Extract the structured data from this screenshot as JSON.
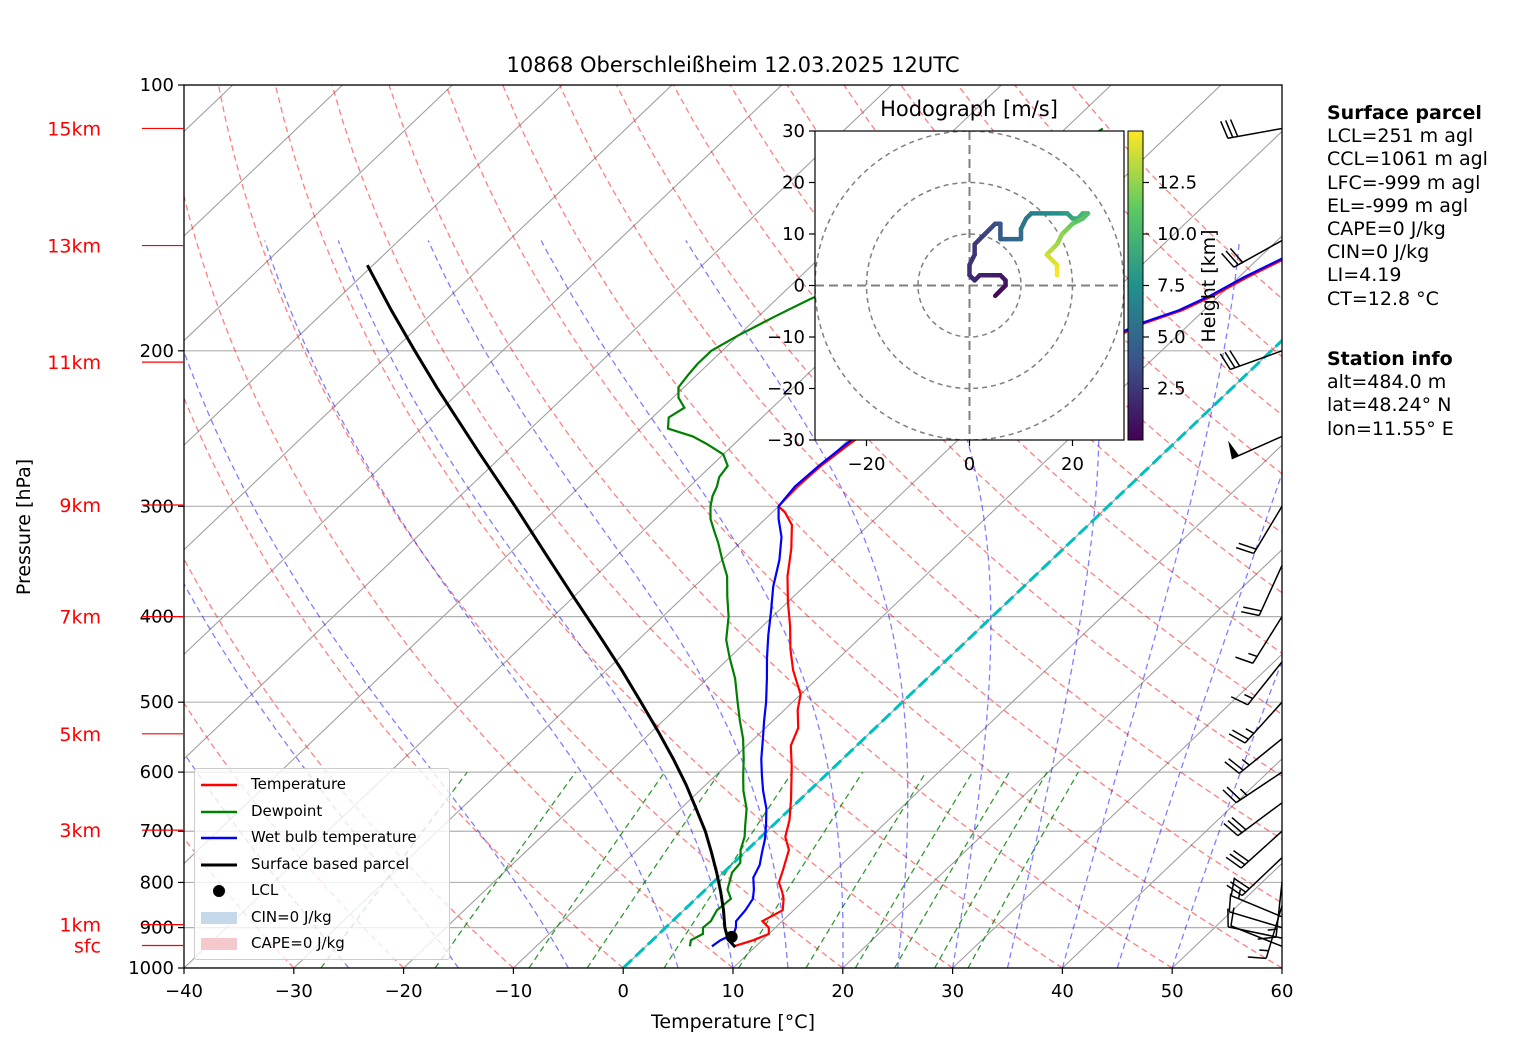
{
  "chart_data": {
    "type": "skew-t log-p",
    "title": "10868 Oberschleißheim 12.03.2025 12UTC",
    "xlabel": "Temperature [°C]",
    "ylabel": "Pressure [hPa]",
    "xlim": [
      -40,
      60
    ],
    "ylim": [
      1000,
      100
    ],
    "x_ticks": [
      -40,
      -30,
      -20,
      -10,
      0,
      10,
      20,
      30,
      40,
      50,
      60
    ],
    "x_tick_labels": [
      "−40",
      "−30",
      "−20",
      "−10",
      "0",
      "10",
      "20",
      "30",
      "40",
      "50",
      "60"
    ],
    "p_ticks": [
      100,
      200,
      300,
      400,
      500,
      600,
      700,
      800,
      900,
      1000
    ],
    "height_labels": [
      {
        "label": "15km",
        "p": 112
      },
      {
        "label": "13km",
        "p": 152
      },
      {
        "label": "11km",
        "p": 206
      },
      {
        "label": "9km",
        "p": 299
      },
      {
        "label": "7km",
        "p": 400
      },
      {
        "label": "5km",
        "p": 543
      },
      {
        "label": "3km",
        "p": 698
      },
      {
        "label": "1km",
        "p": 893
      },
      {
        "label": "sfc",
        "p": 943
      }
    ],
    "series": [
      {
        "name": "Temperature",
        "color": "#ff0000",
        "points": [
          [
            8.0,
            945
          ],
          [
            9.2,
            930
          ],
          [
            10.0,
            915
          ],
          [
            9.4,
            900
          ],
          [
            8.2,
            885
          ],
          [
            9.0,
            860
          ],
          [
            8.0,
            835
          ],
          [
            7.2,
            820
          ],
          [
            6.0,
            800
          ],
          [
            5.2,
            775
          ],
          [
            3.8,
            735
          ],
          [
            2.2,
            710
          ],
          [
            1.0,
            680
          ],
          [
            -0.8,
            645
          ],
          [
            -2.8,
            610
          ],
          [
            -4.0,
            590
          ],
          [
            -6.0,
            560
          ],
          [
            -7.0,
            535
          ],
          [
            -8.8,
            510
          ],
          [
            -10.0,
            490
          ],
          [
            -13.0,
            460
          ],
          [
            -15.3,
            435
          ],
          [
            -17.5,
            410
          ],
          [
            -20.0,
            385
          ],
          [
            -22.5,
            360
          ],
          [
            -24.8,
            335
          ],
          [
            -27.0,
            315
          ],
          [
            -28.8,
            305
          ],
          [
            -30.0,
            300
          ],
          [
            -30.2,
            285
          ],
          [
            -30.0,
            270
          ],
          [
            -29.5,
            255
          ],
          [
            -28.8,
            240
          ],
          [
            -27.0,
            230
          ],
          [
            -25.0,
            225
          ],
          [
            -23.0,
            222
          ],
          [
            -20.5,
            215
          ],
          [
            -19.0,
            207
          ],
          [
            -16.0,
            197
          ],
          [
            -14.5,
            187
          ],
          [
            -12.0,
            180
          ],
          [
            -10.5,
            173
          ],
          [
            -9.2,
            165
          ],
          [
            -7.5,
            157
          ],
          [
            -5.6,
            147
          ],
          [
            -4.2,
            140
          ],
          [
            -3.2,
            135
          ],
          [
            -2.2,
            127
          ],
          [
            -1.5,
            120
          ],
          [
            -0.7,
            113
          ],
          [
            0.2,
            112
          ]
        ]
      },
      {
        "name": "Dewpoint",
        "color": "#008000",
        "points": [
          [
            4.0,
            945
          ],
          [
            3.5,
            930
          ],
          [
            4.0,
            915
          ],
          [
            3.4,
            900
          ],
          [
            3.5,
            885
          ],
          [
            3.0,
            860
          ],
          [
            3.2,
            835
          ],
          [
            2.0,
            815
          ],
          [
            0.8,
            780
          ],
          [
            0.6,
            760
          ],
          [
            -0.6,
            735
          ],
          [
            -1.5,
            710
          ],
          [
            -2.5,
            690
          ],
          [
            -4.0,
            660
          ],
          [
            -6.0,
            630
          ],
          [
            -7.5,
            605
          ],
          [
            -9.0,
            580
          ],
          [
            -11.0,
            550
          ],
          [
            -13.0,
            525
          ],
          [
            -15.0,
            500
          ],
          [
            -17.5,
            470
          ],
          [
            -20.0,
            445
          ],
          [
            -22.0,
            425
          ],
          [
            -24.0,
            400
          ],
          [
            -26.0,
            380
          ],
          [
            -28.0,
            360
          ],
          [
            -30.0,
            345
          ],
          [
            -32.0,
            330
          ],
          [
            -33.5,
            320
          ],
          [
            -35.0,
            310
          ],
          [
            -36.2,
            300
          ],
          [
            -37.0,
            292
          ],
          [
            -37.5,
            285
          ],
          [
            -38.2,
            278
          ],
          [
            -38.5,
            270
          ],
          [
            -40.0,
            262
          ],
          [
            -42.5,
            255
          ],
          [
            -44.5,
            250
          ],
          [
            -47.5,
            245
          ],
          [
            -48.5,
            238
          ],
          [
            -48.0,
            232
          ],
          [
            -49.5,
            226
          ],
          [
            -50.5,
            220
          ],
          [
            -50.8,
            213
          ],
          [
            -51.0,
            207
          ],
          [
            -51.0,
            200
          ],
          [
            -50.0,
            192
          ],
          [
            -48.5,
            183
          ],
          [
            -47.0,
            175
          ],
          [
            -44.5,
            165
          ],
          [
            -42.5,
            157
          ],
          [
            -41.0,
            150
          ],
          [
            -40.5,
            140
          ],
          [
            -39.5,
            132
          ],
          [
            -38.0,
            125
          ],
          [
            -37.5,
            118
          ],
          [
            -36.6,
            112
          ]
        ]
      },
      {
        "name": "Wet bulb temperature",
        "color": "#0000ff",
        "points": [
          [
            6.0,
            945
          ],
          [
            6.2,
            930
          ],
          [
            6.8,
            915
          ],
          [
            6.4,
            900
          ],
          [
            5.8,
            885
          ],
          [
            5.6,
            860
          ],
          [
            5.2,
            835
          ],
          [
            4.4,
            815
          ],
          [
            3.2,
            790
          ],
          [
            2.6,
            765
          ],
          [
            1.6,
            740
          ],
          [
            0.6,
            715
          ],
          [
            -0.6,
            690
          ],
          [
            -2.2,
            660
          ],
          [
            -4.2,
            630
          ],
          [
            -5.8,
            605
          ],
          [
            -7.4,
            580
          ],
          [
            -9.2,
            550
          ],
          [
            -10.8,
            525
          ],
          [
            -12.4,
            500
          ],
          [
            -14.6,
            470
          ],
          [
            -16.6,
            445
          ],
          [
            -18.6,
            420
          ],
          [
            -20.6,
            395
          ],
          [
            -22.8,
            370
          ],
          [
            -24.8,
            345
          ],
          [
            -26.8,
            325
          ],
          [
            -28.8,
            310
          ],
          [
            -30.0,
            300
          ],
          [
            -30.4,
            285
          ],
          [
            -30.2,
            270
          ],
          [
            -29.8,
            255
          ],
          [
            -29.2,
            240
          ],
          [
            -27.5,
            230
          ],
          [
            -25.5,
            225
          ],
          [
            -23.3,
            222
          ],
          [
            -20.8,
            215
          ],
          [
            -19.3,
            207
          ],
          [
            -16.3,
            197
          ],
          [
            -14.8,
            187
          ],
          [
            -12.3,
            180
          ],
          [
            -10.8,
            173
          ],
          [
            -9.5,
            165
          ],
          [
            -7.8,
            157
          ],
          [
            -5.9,
            147
          ],
          [
            -4.5,
            140
          ],
          [
            -3.5,
            135
          ],
          [
            -2.5,
            127
          ],
          [
            -1.8,
            120
          ],
          [
            -1.0,
            113
          ],
          [
            -0.1,
            112
          ]
        ]
      },
      {
        "name": "Surface based parcel",
        "color": "#000000",
        "points": [
          [
            8.2,
            947
          ],
          [
            6.8,
            928
          ],
          [
            5.4,
            900
          ],
          [
            3.6,
            860
          ],
          [
            1.6,
            820
          ],
          [
            -0.6,
            780
          ],
          [
            -3.0,
            740
          ],
          [
            -5.6,
            700
          ],
          [
            -8.6,
            660
          ],
          [
            -11.8,
            620
          ],
          [
            -15.4,
            580
          ],
          [
            -19.4,
            540
          ],
          [
            -23.8,
            500
          ],
          [
            -28.6,
            460
          ],
          [
            -34.0,
            420
          ],
          [
            -40.0,
            380
          ],
          [
            -46.6,
            340
          ],
          [
            -54.0,
            300
          ],
          [
            -62.6,
            260
          ],
          [
            -72.5,
            220
          ],
          [
            -78.0,
            200
          ],
          [
            -84.0,
            180
          ],
          [
            -90.5,
            160
          ]
        ]
      }
    ],
    "lcl": {
      "name": "LCL",
      "t": 6.9,
      "p": 922
    },
    "legend": [
      {
        "label": "Temperature",
        "kind": "line",
        "color": "#ff0000"
      },
      {
        "label": "Dewpoint",
        "kind": "line",
        "color": "#008000"
      },
      {
        "label": "Wet bulb temperature",
        "kind": "line",
        "color": "#0000ff"
      },
      {
        "label": "Surface based parcel",
        "kind": "line",
        "color": "#000000"
      },
      {
        "label": "LCL",
        "kind": "dot",
        "color": "#000000"
      },
      {
        "label": "CIN=0 J/kg",
        "kind": "patch",
        "color": "#c6d9ea"
      },
      {
        "label": "CAPE=0 J/kg",
        "kind": "patch",
        "color": "#f5c8cc"
      }
    ],
    "legend_position": "lower-left",
    "zero_isotherm_color": "#00bfbf",
    "wind_barbs": [
      {
        "p": 112,
        "u": -5.5,
        "v": -1.0,
        "speed_kt": 30
      },
      {
        "p": 150,
        "u": -4.5,
        "v": -2.5,
        "speed_kt": 30
      },
      {
        "p": 200,
        "u": -5.0,
        "v": -1.8,
        "speed_kt": 30
      },
      {
        "p": 250,
        "u": -4.5,
        "v": -2.0,
        "speed_kt": 50
      },
      {
        "p": 300,
        "u": -3.0,
        "v": -5.0,
        "speed_kt": 20
      },
      {
        "p": 350,
        "u": -2.5,
        "v": -5.5,
        "speed_kt": 20
      },
      {
        "p": 400,
        "u": -3.0,
        "v": -4.8,
        "speed_kt": 15
      },
      {
        "p": 450,
        "u": -3.5,
        "v": -4.4,
        "speed_kt": 15
      },
      {
        "p": 500,
        "u": -3.8,
        "v": -4.2,
        "speed_kt": 25
      },
      {
        "p": 550,
        "u": -4.2,
        "v": -3.4,
        "speed_kt": 25
      },
      {
        "p": 600,
        "u": -4.5,
        "v": -3.0,
        "speed_kt": 25
      },
      {
        "p": 650,
        "u": -4.3,
        "v": -3.2,
        "speed_kt": 30
      },
      {
        "p": 700,
        "u": -4.0,
        "v": -3.6,
        "speed_kt": 30
      },
      {
        "p": 750,
        "u": -4.0,
        "v": -3.8,
        "speed_kt": 30
      },
      {
        "p": 800,
        "u": -0.6,
        "v": -5.5,
        "speed_kt": 15
      },
      {
        "p": 850,
        "u": -1.5,
        "v": -5.0,
        "speed_kt": 15
      },
      {
        "p": 875,
        "u": -4.8,
        "v": 2.0,
        "speed_kt": 15
      },
      {
        "p": 900,
        "u": -5.0,
        "v": 1.5,
        "speed_kt": 10
      },
      {
        "p": 925,
        "u": -4.8,
        "v": 1.0,
        "speed_kt": 10
      },
      {
        "p": 945,
        "u": -4.5,
        "v": 1.8,
        "speed_kt": 10
      }
    ],
    "hodograph": {
      "title": "Hodograph [m/s]",
      "xlim": [
        -30,
        30
      ],
      "ylim": [
        -30,
        30
      ],
      "ticks": [
        -30,
        -20,
        -10,
        0,
        10,
        20,
        30
      ],
      "x_tick_labels": [
        "−20",
        "0",
        "20"
      ],
      "y_tick_labels": [
        "30",
        "20",
        "10",
        "0",
        "−10",
        "−20",
        "−30"
      ],
      "rings": [
        10,
        20,
        30
      ],
      "colorbar": {
        "label": "Height [km]",
        "ticks": [
          "2.5",
          "5.0",
          "7.5",
          "10.0",
          "12.5"
        ],
        "min": 0,
        "max": 15,
        "colormap": "viridis"
      },
      "points": [
        [
          5,
          -2,
          0.2
        ],
        [
          6,
          -1,
          0.4
        ],
        [
          7,
          0,
          0.6
        ],
        [
          7,
          1,
          0.8
        ],
        [
          6,
          2,
          1.0
        ],
        [
          4,
          2,
          1.2
        ],
        [
          2,
          2,
          1.4
        ],
        [
          1,
          1,
          1.6
        ],
        [
          0,
          2,
          1.8
        ],
        [
          0,
          4,
          2.0
        ],
        [
          1,
          6,
          2.2
        ],
        [
          1,
          8,
          2.4
        ],
        [
          2,
          9,
          2.6
        ],
        [
          3,
          10,
          2.8
        ],
        [
          4,
          11,
          3.0
        ],
        [
          5,
          12,
          3.3
        ],
        [
          6,
          12,
          3.6
        ],
        [
          6,
          10,
          3.9
        ],
        [
          6,
          9,
          4.2
        ],
        [
          7,
          9,
          4.5
        ],
        [
          9,
          9,
          4.8
        ],
        [
          10,
          9,
          5.1
        ],
        [
          10,
          11,
          5.4
        ],
        [
          11,
          13,
          5.7
        ],
        [
          12,
          14,
          6.0
        ],
        [
          14,
          14,
          6.5
        ],
        [
          16,
          14,
          7.0
        ],
        [
          18,
          14,
          7.5
        ],
        [
          19,
          14,
          8.0
        ],
        [
          20,
          13,
          8.5
        ],
        [
          21,
          13,
          9.0
        ],
        [
          22,
          14,
          9.5
        ],
        [
          23,
          14,
          10.0
        ],
        [
          22,
          13,
          10.5
        ],
        [
          20,
          12,
          11.0
        ],
        [
          19,
          11,
          11.5
        ],
        [
          18,
          10,
          12.0
        ],
        [
          17,
          8,
          12.5
        ],
        [
          16,
          7,
          13.0
        ],
        [
          15,
          6,
          13.5
        ],
        [
          16,
          5,
          14.0
        ],
        [
          17,
          4,
          14.3
        ],
        [
          17,
          3,
          14.6
        ],
        [
          17,
          2,
          14.9
        ]
      ]
    }
  },
  "info": {
    "surface_title": "Surface parcel",
    "surface": [
      "LCL=251 m agl",
      "CCL=1061 m agl",
      "LFC=-999 m agl",
      "EL=-999 m agl",
      "CAPE=0 J/kg",
      "CIN=0 J/kg",
      "LI=4.19",
      "CT=12.8 °C"
    ],
    "station_title": "Station info",
    "station": [
      "alt=484.0 m",
      "lat=48.24° N",
      "lon=11.55° E"
    ]
  }
}
